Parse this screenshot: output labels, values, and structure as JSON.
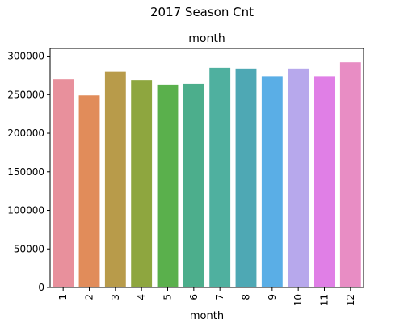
{
  "chart_data": {
    "type": "bar",
    "suptitle": "2017 Season Cnt",
    "title": "month",
    "xlabel": "month",
    "ylabel": "",
    "categories": [
      "1",
      "2",
      "3",
      "4",
      "5",
      "6",
      "7",
      "8",
      "9",
      "10",
      "11",
      "12"
    ],
    "values": [
      270000,
      249000,
      280000,
      269000,
      263000,
      264000,
      285000,
      284000,
      274000,
      284000,
      274000,
      292000
    ],
    "colors": [
      "#e8909c",
      "#e18c5a",
      "#b89b4a",
      "#8ea63f",
      "#5ab04c",
      "#4cae8c",
      "#4fb09f",
      "#4ea8b4",
      "#5aaee6",
      "#b7a8ec",
      "#e07fe6",
      "#e88dc4"
    ],
    "ylim": [
      0,
      310000
    ],
    "yticks": [
      0,
      50000,
      100000,
      150000,
      200000,
      250000,
      300000
    ],
    "ytick_labels": [
      "0",
      "50000",
      "100000",
      "150000",
      "200000",
      "250000",
      "300000"
    ],
    "grid": false,
    "legend": "none"
  }
}
